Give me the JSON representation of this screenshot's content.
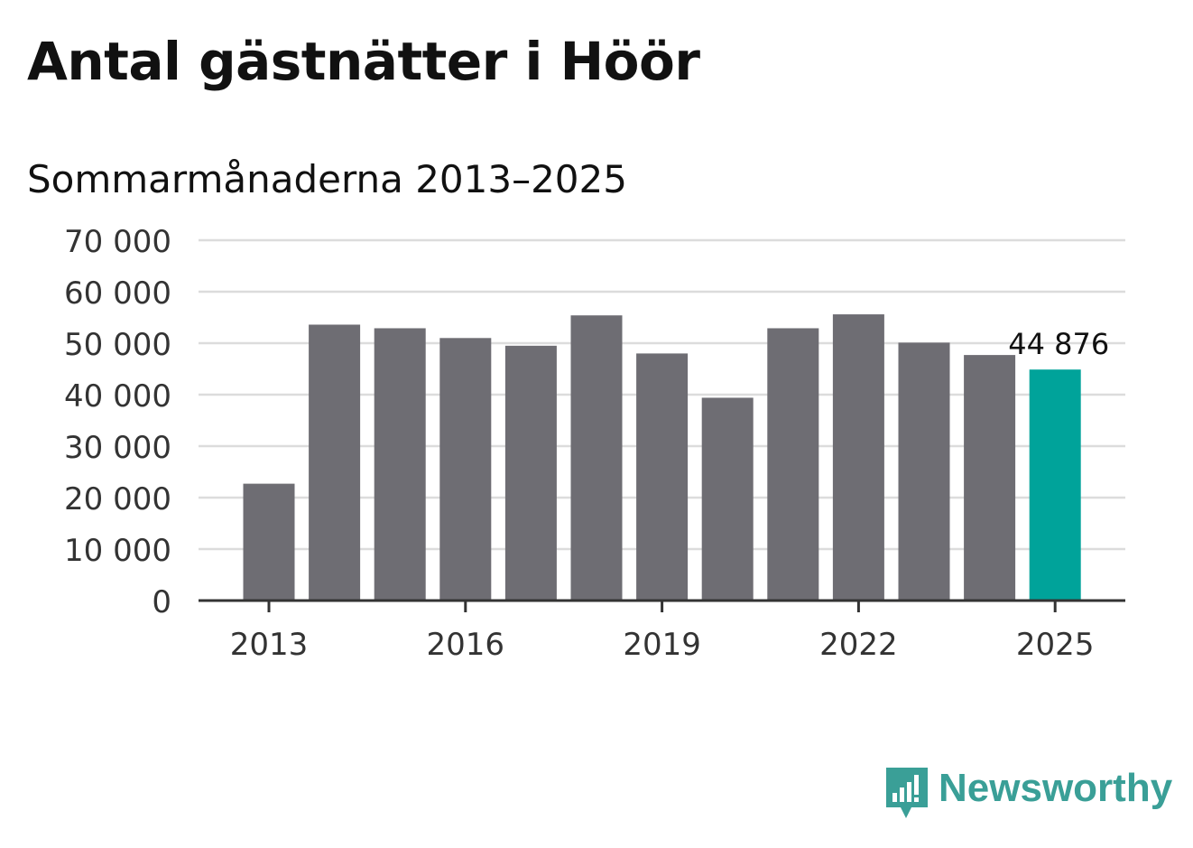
{
  "chart_data": {
    "type": "bar",
    "title": "Antal gästnätter i Höör",
    "subtitle": "Sommarmånaderna 2013–2025",
    "categories": [
      "2013",
      "2014",
      "2015",
      "2016",
      "2017",
      "2018",
      "2019",
      "2020",
      "2021",
      "2022",
      "2023",
      "2024",
      "2025"
    ],
    "values": [
      22700,
      53600,
      52900,
      51000,
      49500,
      55400,
      48000,
      39400,
      52900,
      55600,
      50100,
      47700,
      44876
    ],
    "ylim": [
      0,
      70000
    ],
    "yticks": [
      0,
      10000,
      20000,
      30000,
      40000,
      50000,
      60000,
      70000
    ],
    "ytick_labels": [
      "0",
      "10 000",
      "20 000",
      "30 000",
      "40 000",
      "50 000",
      "60 000",
      "70 000"
    ],
    "xtick_labels": [
      "2013",
      "2016",
      "2019",
      "2022",
      "2025"
    ],
    "highlight_label": "44 876",
    "grid": true,
    "colors": {
      "bar": "#6e6d73",
      "highlight": "#00a39a",
      "grid": "#dcdcdc",
      "axis": "#333333"
    }
  },
  "brand": {
    "name": "Newsworthy",
    "icon": "bar-chart-speech-bubble-icon",
    "color": "#3a9f97"
  }
}
